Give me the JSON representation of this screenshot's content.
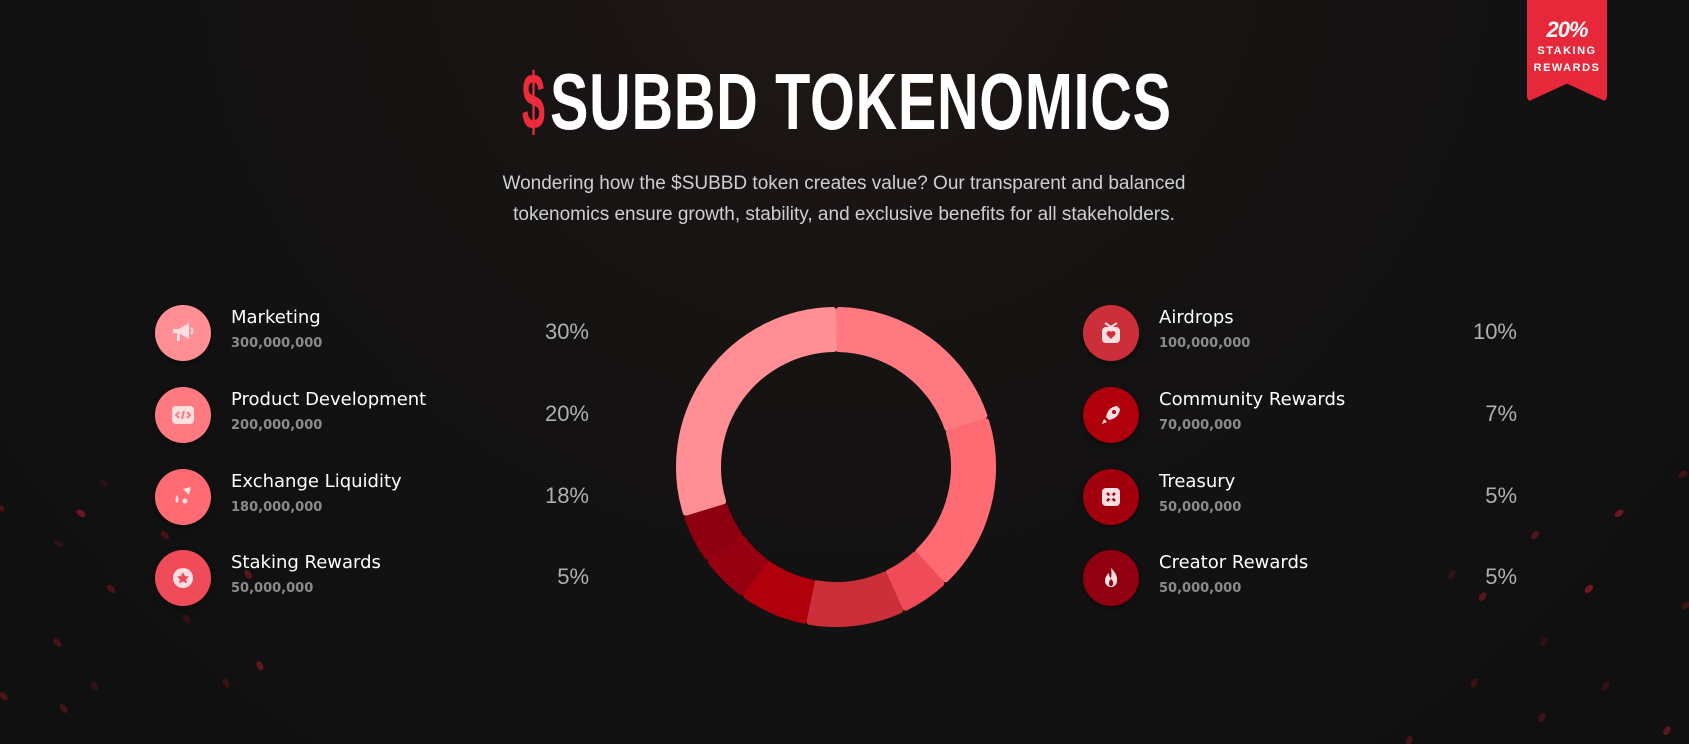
{
  "badge": {
    "value": "20%",
    "line1": "STAKING",
    "line2": "REWARDS",
    "color": "#e6283a"
  },
  "header": {
    "title_symbol": "$",
    "title_text": "SUBBD TOKENOMICS",
    "subtitle_line1": "Wondering how the $SUBBD token creates value? Our transparent and balanced",
    "subtitle_line2": "tokenomics ensure growth, stability, and exclusive benefits for all stakeholders."
  },
  "left_items": [
    {
      "name": "Marketing",
      "amount": "300,000,000",
      "percent": "30%",
      "icon": "megaphone-icon",
      "color": "#ff8f94"
    },
    {
      "name": "Product Development",
      "amount": "200,000,000",
      "percent": "20%",
      "icon": "code-icon",
      "color": "#ff7a80"
    },
    {
      "name": "Exchange Liquidity",
      "amount": "180,000,000",
      "percent": "18%",
      "icon": "droplets-icon",
      "color": "#ff6b72"
    },
    {
      "name": "Staking Rewards",
      "amount": "50,000,000",
      "percent": "5%",
      "icon": "star-badge-icon",
      "color": "#f04b58"
    }
  ],
  "right_items": [
    {
      "name": "Airdrops",
      "amount": "100,000,000",
      "percent": "10%",
      "icon": "gift-heart-icon",
      "color": "#cc2f3a"
    },
    {
      "name": "Community Rewards",
      "amount": "70,000,000",
      "percent": "7%",
      "icon": "rocket-icon",
      "color": "#b0000b"
    },
    {
      "name": "Treasury",
      "amount": "50,000,000",
      "percent": "5%",
      "icon": "vault-icon",
      "color": "#a2000c"
    },
    {
      "name": "Creator Rewards",
      "amount": "50,000,000",
      "percent": "5%",
      "icon": "flame-icon",
      "color": "#900010"
    }
  ],
  "chart_data": {
    "type": "pie",
    "variant": "donut",
    "order_clockwise_from_top": [
      "Product Development",
      "Exchange Liquidity",
      "Staking Rewards",
      "Airdrops",
      "Community Rewards",
      "Treasury",
      "Creator Rewards",
      "Marketing"
    ],
    "categories": [
      "Marketing",
      "Product Development",
      "Exchange Liquidity",
      "Staking Rewards",
      "Airdrops",
      "Community Rewards",
      "Treasury",
      "Creator Rewards"
    ],
    "values": [
      30,
      20,
      18,
      5,
      10,
      7,
      5,
      5
    ],
    "colors": [
      "#ff8f94",
      "#ff7a80",
      "#ff6b72",
      "#f04b58",
      "#cc2f3a",
      "#b0000b",
      "#960010",
      "#8e0010"
    ]
  }
}
